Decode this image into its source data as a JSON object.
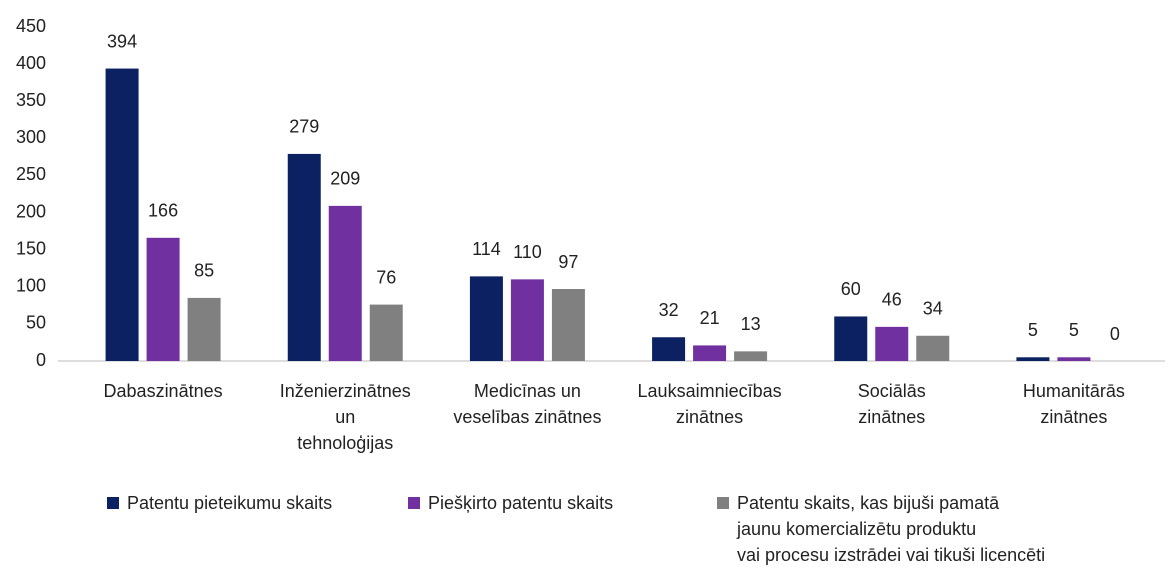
{
  "chart_data": {
    "type": "bar",
    "categories": [
      "Dabaszinātnes",
      "Inženierzinātnes\nun\ntehnoloģijas",
      "Medicīnas un\nveselības zinātnes",
      "Lauksaimniecības\nzinātnes",
      "Sociālās\nzinātnes",
      "Humanitārās\nzinātnes"
    ],
    "series": [
      {
        "name": "Patentu pieteikumu skaits",
        "color": "#0b2161",
        "values": [
          394,
          279,
          114,
          32,
          60,
          5
        ]
      },
      {
        "name": "Piešķirto patentu skaits",
        "color": "#7030a0",
        "values": [
          166,
          209,
          110,
          21,
          46,
          5
        ]
      },
      {
        "name": "Patentu skaits, kas bijuši pamatā\njaunu komercializētu produktu\nvai procesu izstrādei vai tikuši licencēti",
        "color": "#808080",
        "values": [
          85,
          76,
          97,
          13,
          34,
          0
        ]
      }
    ],
    "ylim": [
      0,
      450
    ],
    "yticks": [
      0,
      50,
      100,
      150,
      200,
      250,
      300,
      350,
      400,
      450
    ],
    "grid": false,
    "legend": "bottom"
  }
}
